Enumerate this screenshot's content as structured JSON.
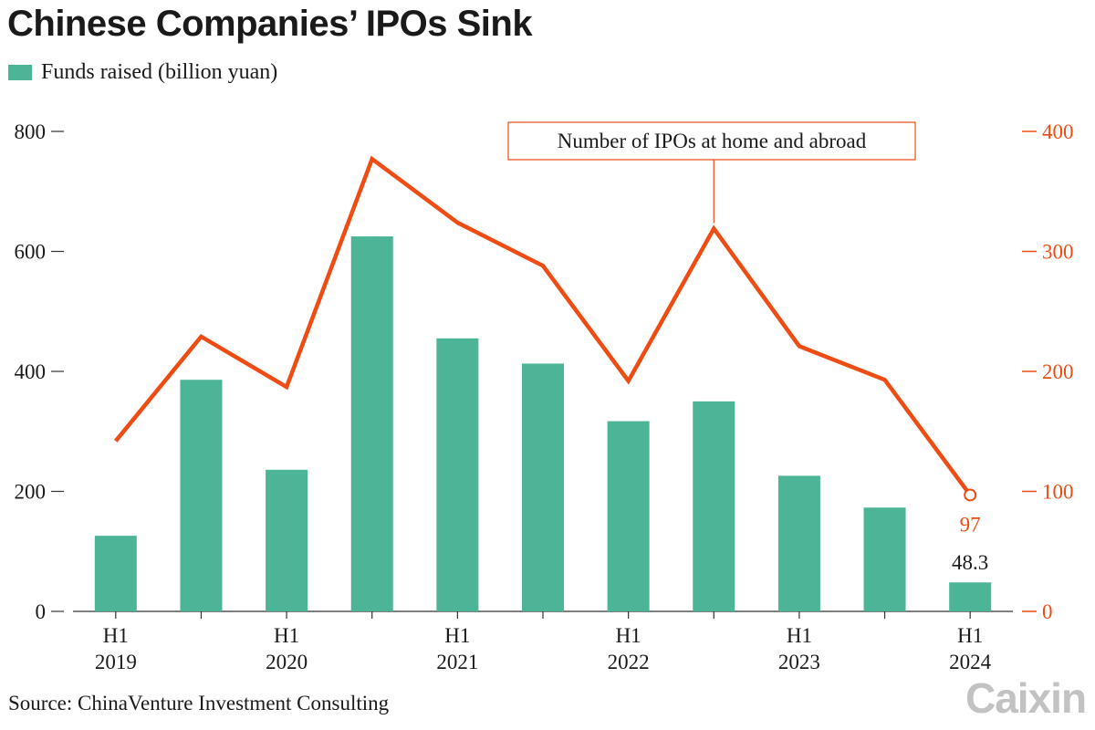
{
  "title": "Chinese Companies’ IPOs Sink",
  "legend": {
    "label": "Funds raised (billion yuan)"
  },
  "source": "Source: ChinaVenture Investment Consulting",
  "logo": "Caixin",
  "colors": {
    "bar": "#4db597",
    "line": "#ee4c12",
    "text": "#1a1a1a",
    "axis": "#333333",
    "logo": "#c2c2c2"
  },
  "chart_data": {
    "type": "bar",
    "title": "Chinese Companies’ IPOs Sink",
    "periods": [
      "2019-H1",
      "2019-H2",
      "2020-H1",
      "2020-H2",
      "2021-H1",
      "2021-H2",
      "2022-H1",
      "2022-H2",
      "2023-H1",
      "2023-H2",
      "2024-H1"
    ],
    "x_tick_labels": [
      {
        "index": 0,
        "top": "H1",
        "bottom": "2019"
      },
      {
        "index": 2,
        "top": "H1",
        "bottom": "2020"
      },
      {
        "index": 4,
        "top": "H1",
        "bottom": "2021"
      },
      {
        "index": 6,
        "top": "H1",
        "bottom": "2022"
      },
      {
        "index": 8,
        "top": "H1",
        "bottom": "2023"
      },
      {
        "index": 10,
        "top": "H1",
        "bottom": "2024"
      }
    ],
    "series": [
      {
        "name": "Funds raised (billion yuan)",
        "type": "bar",
        "axis": "left",
        "values": [
          126,
          386,
          236,
          625,
          455,
          413,
          317,
          350,
          226,
          173,
          48.3
        ]
      },
      {
        "name": "Number of IPOs at home and abroad",
        "type": "line",
        "axis": "right",
        "values": [
          142,
          229,
          187,
          377,
          324,
          288,
          192,
          319,
          221,
          193,
          97
        ]
      }
    ],
    "left_axis": {
      "ylim": [
        0,
        800
      ],
      "ticks": [
        0,
        200,
        400,
        600,
        800
      ]
    },
    "right_axis": {
      "ylim": [
        0,
        400
      ],
      "ticks": [
        0,
        100,
        200,
        300,
        400
      ]
    },
    "annotations": {
      "line_label": "Number of IPOs at home and abroad",
      "last_bar_label": "48.3",
      "last_line_label": "97"
    },
    "grid": false
  }
}
